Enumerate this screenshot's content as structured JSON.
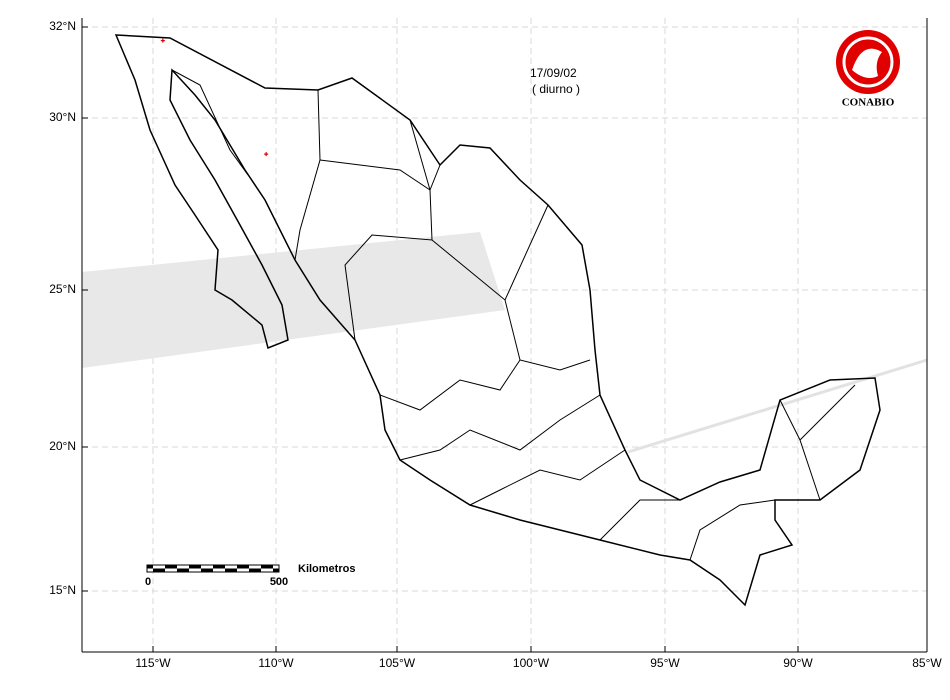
{
  "map": {
    "date": "17/09/02",
    "period": "( diurno )",
    "logo_label": "CONABIO",
    "scale_bar": {
      "unit_label": "Kilometros",
      "ticks": [
        0,
        500
      ]
    },
    "lon_ticks": [
      {
        "value": -115,
        "label": "115°W"
      },
      {
        "value": -110,
        "label": "110°W"
      },
      {
        "value": -105,
        "label": "105°W"
      },
      {
        "value": -100,
        "label": "100°W"
      },
      {
        "value": -95,
        "label": "95°W"
      },
      {
        "value": -90,
        "label": "90°W"
      },
      {
        "value": -85,
        "label": "85°W"
      }
    ],
    "lat_ticks": [
      {
        "value": 32,
        "label": "32°N"
      },
      {
        "value": 30,
        "label": "30°N"
      },
      {
        "value": 25,
        "label": "25°N"
      },
      {
        "value": 20,
        "label": "20°N"
      },
      {
        "value": 15,
        "label": "15°N"
      }
    ],
    "hotspots": [
      {
        "lon": -114.6,
        "lat": 31.7
      },
      {
        "lon": -110.4,
        "lat": 28.95
      }
    ]
  }
}
